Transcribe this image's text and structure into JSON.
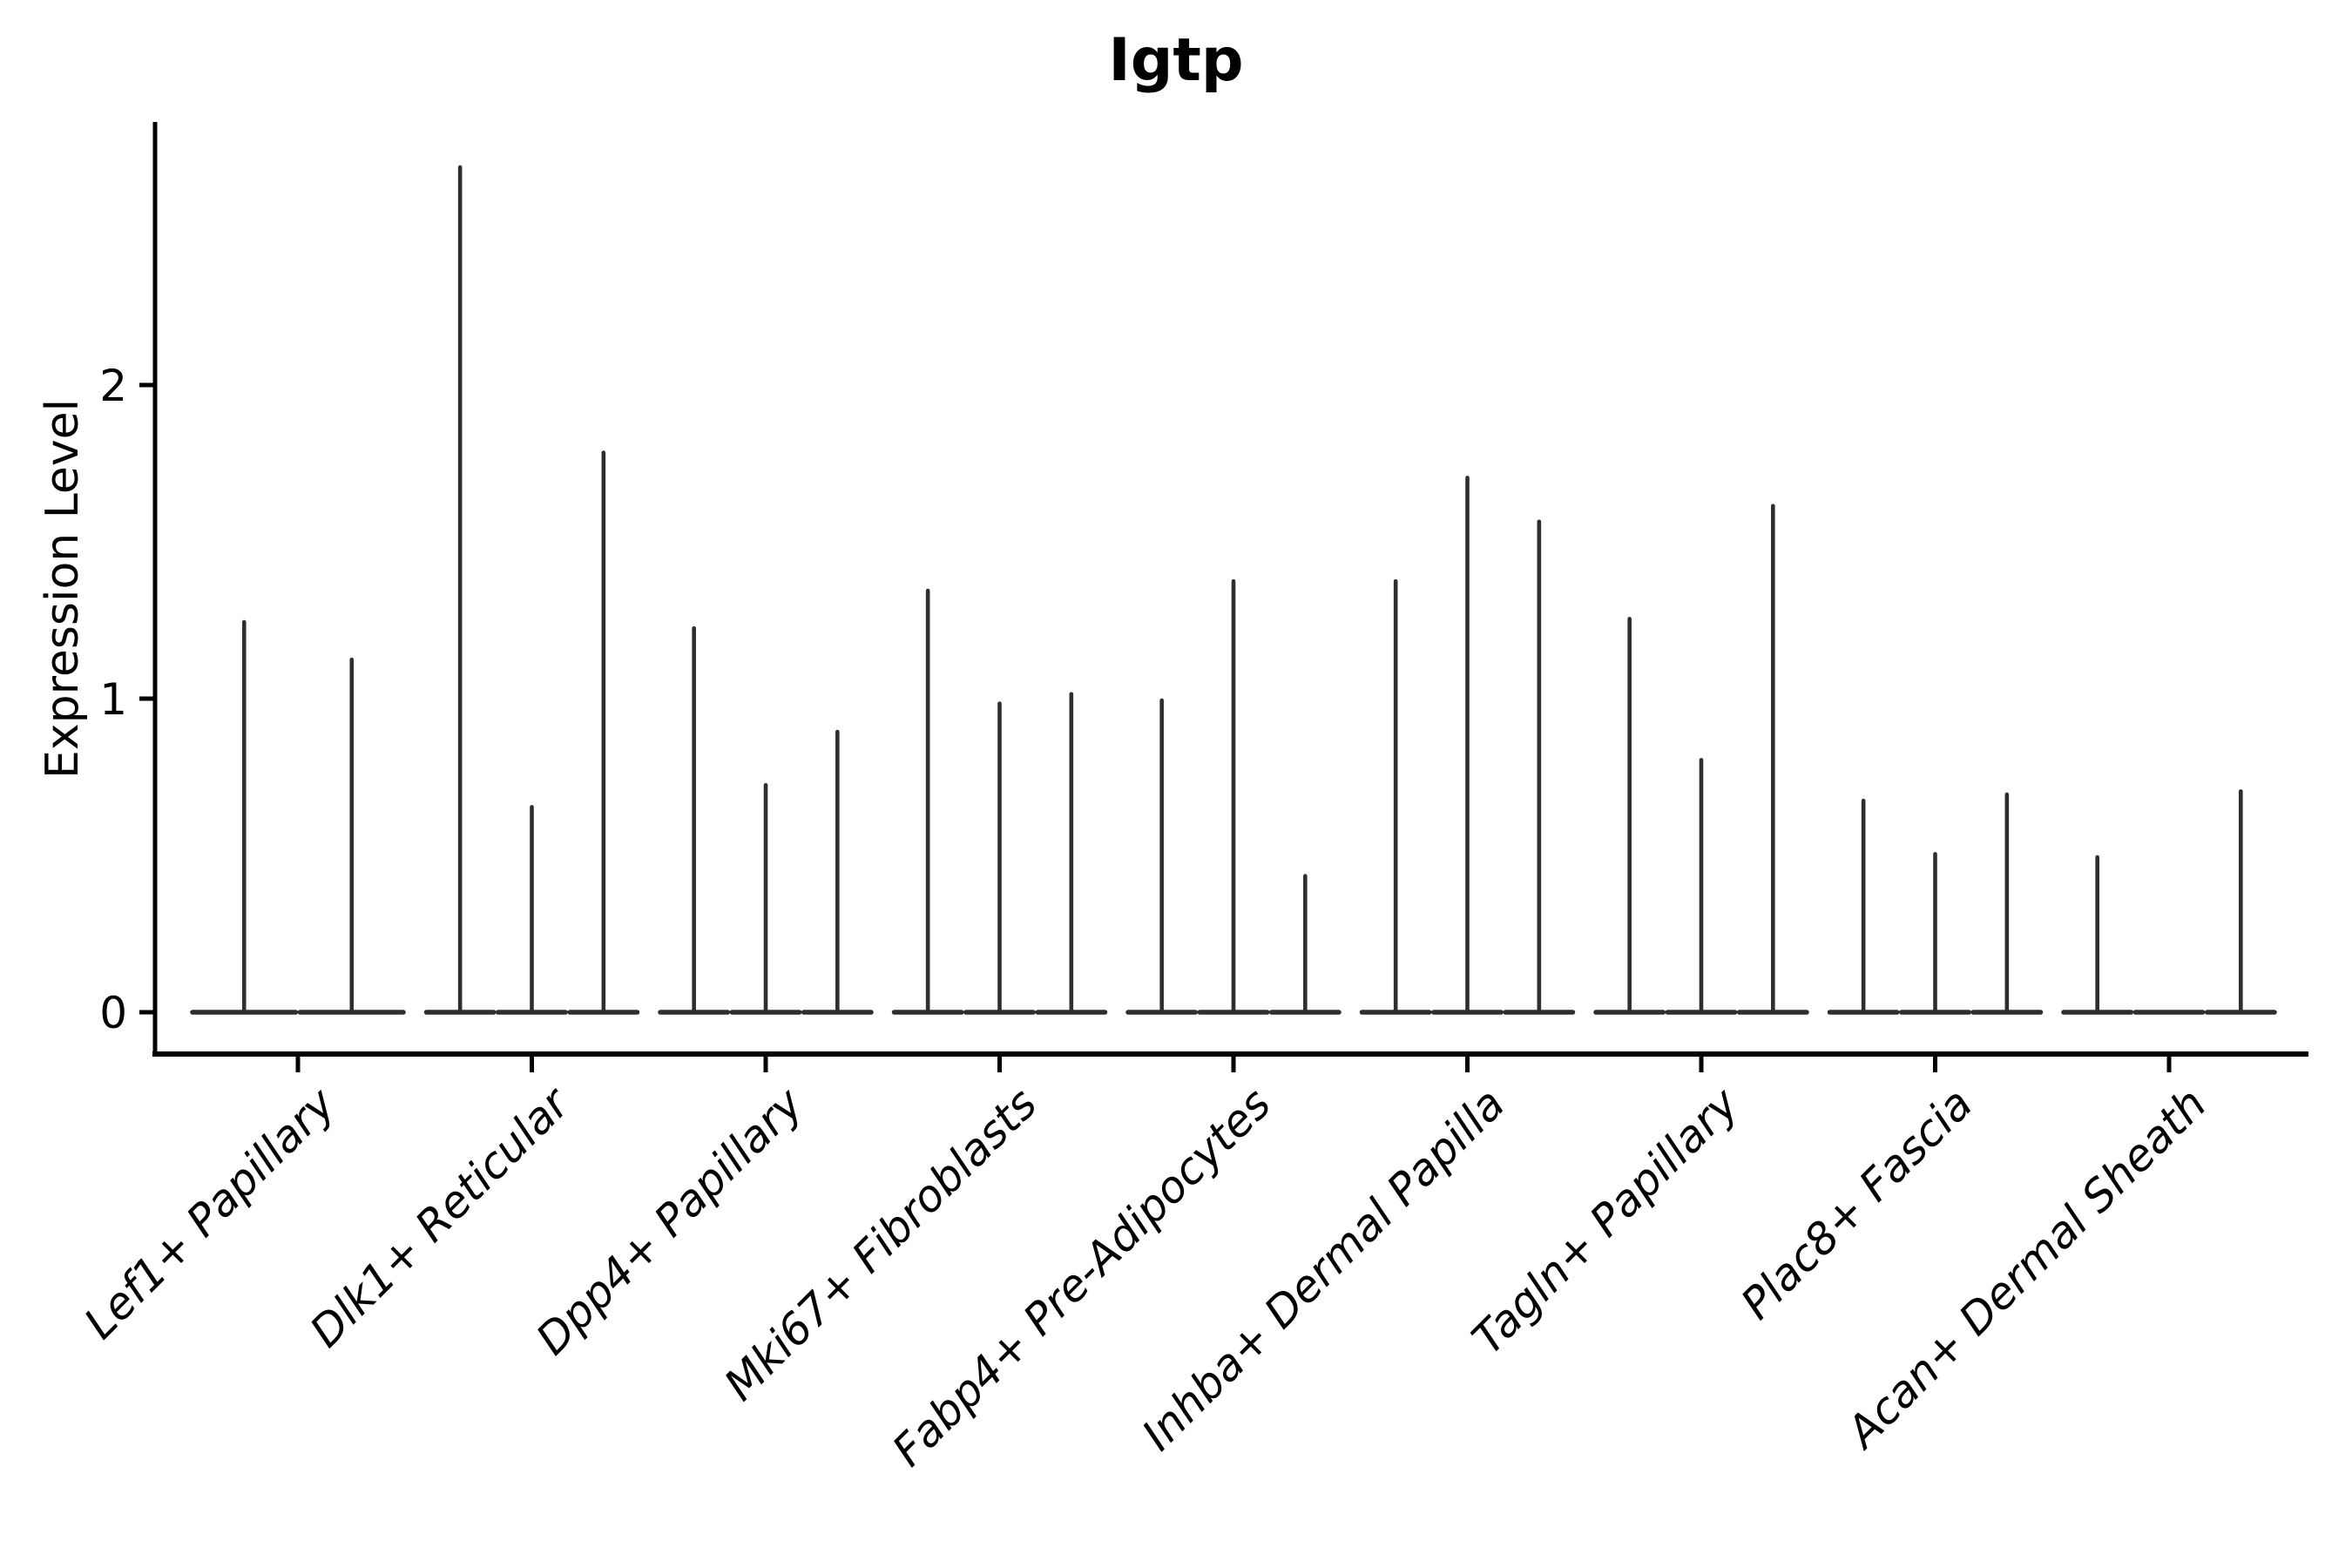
{
  "title": "Igtp",
  "chart_data": {
    "type": "violin",
    "title": "Igtp",
    "xlabel": "",
    "ylabel": "Expression Level",
    "yticks": [
      0,
      1,
      2
    ],
    "ylim": [
      0,
      2.84
    ],
    "grid": false,
    "legend": null,
    "style_note": "violins collapsed to flat baselines at 0 with thin vertical density spikes; max spike value per sub-violin listed",
    "categories": [
      {
        "label": "Lef1+ Papillary",
        "violin_maxima": [
          1.25,
          1.13
        ]
      },
      {
        "label": "Dlk1+ Reticular",
        "violin_maxima": [
          2.7,
          0.66,
          1.79
        ]
      },
      {
        "label": "Dpp4+ Papillary",
        "violin_maxima": [
          1.23,
          0.73,
          0.9
        ]
      },
      {
        "label": "Mki67+ Fibroblasts",
        "violin_maxima": [
          1.35,
          0.99,
          1.02
        ]
      },
      {
        "label": "Fabp4+ Pre-Adipocytes",
        "violin_maxima": [
          1.0,
          1.38,
          0.44
        ]
      },
      {
        "label": "Inhba+ Dermal Papilla",
        "violin_maxima": [
          1.38,
          1.71,
          1.57
        ]
      },
      {
        "label": "Tagln+ Papillary",
        "violin_maxima": [
          1.26,
          0.81,
          1.62
        ]
      },
      {
        "label": "Plac8+ Fascia",
        "violin_maxima": [
          0.68,
          0.51,
          0.7
        ]
      },
      {
        "label": "Acan+ Dermal Sheath",
        "violin_maxima": [
          0.5,
          0.0,
          0.71
        ]
      }
    ],
    "colors": {
      "background": "#ffffff",
      "axis": "#000000",
      "text": "#000000",
      "violin_stroke": "#2e2e2e"
    }
  }
}
